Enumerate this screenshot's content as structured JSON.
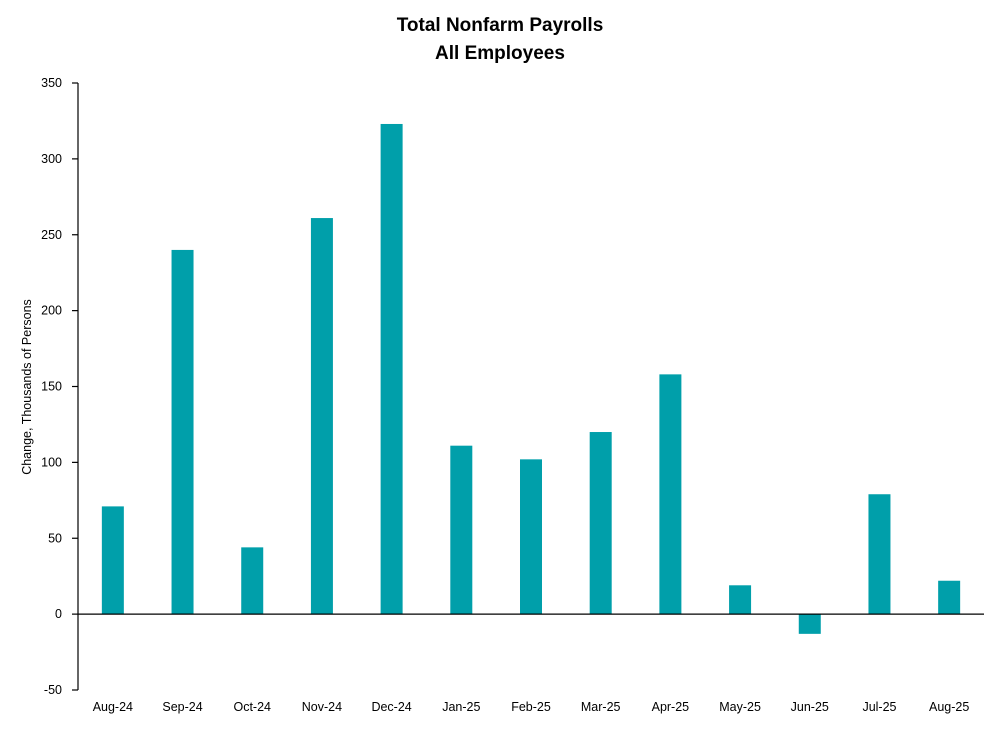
{
  "chart_data": {
    "type": "bar",
    "title": [
      "Total Nonfarm Payrolls",
      "All Employees"
    ],
    "xlabel": "",
    "ylabel": "Change, Thousands of Persons",
    "categories": [
      "Aug-24",
      "Sep-24",
      "Oct-24",
      "Nov-24",
      "Dec-24",
      "Jan-25",
      "Feb-25",
      "Mar-25",
      "Apr-25",
      "May-25",
      "Jun-25",
      "Jul-25",
      "Aug-25"
    ],
    "values": [
      71,
      240,
      44,
      261,
      323,
      111,
      102,
      120,
      158,
      19,
      -13,
      79,
      22
    ],
    "ylim": [
      -50,
      350
    ],
    "yticks": [
      -50,
      0,
      50,
      100,
      150,
      200,
      250,
      300,
      350
    ],
    "bar_color": "#009FAA",
    "grid": false,
    "legend": "none"
  }
}
